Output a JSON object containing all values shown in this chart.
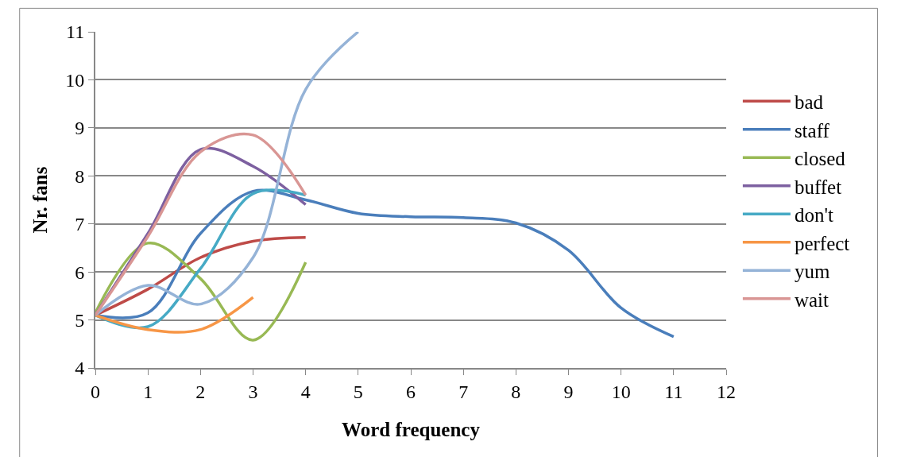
{
  "chart_data": {
    "type": "line",
    "xlabel": "Word frequency",
    "ylabel": "Nr. fans",
    "xlim": [
      0,
      12
    ],
    "xticks": [
      0,
      1,
      2,
      3,
      4,
      5,
      6,
      7,
      8,
      9,
      10,
      11,
      12
    ],
    "ylim": [
      4,
      11
    ],
    "yticks": [
      4,
      5,
      6,
      7,
      8,
      9,
      10,
      11
    ],
    "grid": "y",
    "legend": "right",
    "marker": "none",
    "line_style": "solid",
    "series": [
      {
        "name": "bad",
        "color": "#be4b48",
        "x": [
          0,
          1,
          2,
          3,
          4
        ],
        "values": [
          5.1,
          5.64,
          6.3,
          6.64,
          6.72
        ]
      },
      {
        "name": "staff",
        "color": "#4a7ebb",
        "x": [
          0,
          1,
          2,
          3,
          4,
          5,
          6,
          7,
          8,
          9,
          10,
          11
        ],
        "values": [
          5.1,
          5.15,
          6.8,
          7.68,
          7.5,
          7.22,
          7.15,
          7.13,
          7.02,
          6.45,
          5.25,
          4.65
        ]
      },
      {
        "name": "closed",
        "color": "#98b954",
        "x": [
          0,
          1,
          2,
          3,
          4
        ],
        "values": [
          5.15,
          6.6,
          5.86,
          4.58,
          6.2
        ]
      },
      {
        "name": "buffet",
        "color": "#7d60a0",
        "x": [
          0,
          1,
          2,
          3,
          4
        ],
        "values": [
          5.1,
          6.8,
          8.55,
          8.2,
          7.4
        ]
      },
      {
        "name": "don't",
        "color": "#46aac5",
        "x": [
          0,
          1,
          2,
          3,
          4
        ],
        "values": [
          5.1,
          4.86,
          6.07,
          7.63,
          7.6
        ]
      },
      {
        "name": "perfect",
        "color": "#f79646",
        "x": [
          0,
          1,
          2,
          3
        ],
        "values": [
          5.1,
          4.8,
          4.8,
          5.47
        ]
      },
      {
        "name": "yum",
        "color": "#95b3d7",
        "x": [
          0,
          1,
          2,
          3,
          4,
          5
        ],
        "values": [
          5.1,
          5.72,
          5.33,
          6.3,
          9.8,
          11
        ]
      },
      {
        "name": "wait",
        "color": "#d99694",
        "x": [
          0,
          1,
          2,
          3,
          4
        ],
        "values": [
          5.1,
          6.74,
          8.5,
          8.85,
          7.6
        ]
      }
    ]
  }
}
